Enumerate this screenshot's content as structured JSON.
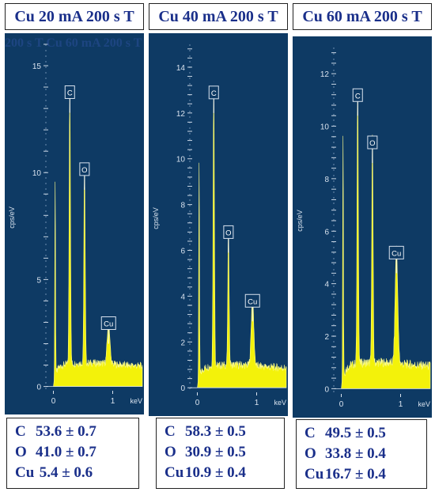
{
  "titles": [
    "Cu 20 mA 200 s T",
    "Cu 40 mA 200 s T",
    "Cu 60 mA 200 s T"
  ],
  "ghost_text": "200 s T   Cu 60 mA   200 s T",
  "compositions": [
    [
      {
        "el": "C",
        "val": "53.6 ± 0.7"
      },
      {
        "el": "O",
        "val": "41.0 ± 0.7"
      },
      {
        "el": "Cu",
        "val": " 5.4 ± 0.6"
      }
    ],
    [
      {
        "el": "C",
        "val": "58.3 ± 0.5"
      },
      {
        "el": "O",
        "val": "30.9 ± 0.5"
      },
      {
        "el": "Cu",
        "val": "10.9 ± 0.4"
      }
    ],
    [
      {
        "el": "C",
        "val": "49.5 ± 0.5"
      },
      {
        "el": "O",
        "val": "33.8 ± 0.4"
      },
      {
        "el": "Cu",
        "val": "16.7 ± 0.4"
      }
    ]
  ],
  "chart_data": [
    {
      "type": "line",
      "ylabel": "cps/eV",
      "xlabel": "keV",
      "xlim": [
        -0.1,
        1.5
      ],
      "ylim": [
        -0.2,
        16
      ],
      "yticks": [
        0,
        5,
        10,
        15
      ],
      "xticks": [
        0,
        1
      ],
      "peaks": [
        {
          "x": 0.03,
          "height": 9.3,
          "label": ""
        },
        {
          "x": 0.277,
          "height": 12.8,
          "label": "C"
        },
        {
          "x": 0.525,
          "height": 9.2,
          "label": "O"
        },
        {
          "x": 0.93,
          "height": 2.0,
          "label": "Cu"
        }
      ],
      "baseline": 1.1,
      "fill_color": "#f3f20a",
      "background": "#0e3a64"
    },
    {
      "type": "line",
      "ylabel": "cps/eV",
      "xlabel": "keV",
      "xlim": [
        -0.1,
        1.5
      ],
      "ylim": [
        -0.2,
        15
      ],
      "yticks": [
        0,
        2,
        4,
        6,
        8,
        10,
        12,
        14
      ],
      "xticks": [
        0,
        1
      ],
      "peaks": [
        {
          "x": 0.03,
          "height": 9.6,
          "label": ""
        },
        {
          "x": 0.277,
          "height": 12.0,
          "label": "C"
        },
        {
          "x": 0.525,
          "height": 5.9,
          "label": "O"
        },
        {
          "x": 0.93,
          "height": 2.9,
          "label": "Cu"
        }
      ],
      "baseline": 1.0,
      "fill_color": "#f3f20a",
      "background": "#0e3a64"
    },
    {
      "type": "line",
      "ylabel": "cps/eV",
      "xlabel": "keV",
      "xlim": [
        -0.1,
        1.5
      ],
      "ylim": [
        -0.2,
        13
      ],
      "yticks": [
        0,
        2,
        4,
        6,
        8,
        10,
        12
      ],
      "xticks": [
        0,
        1
      ],
      "peaks": [
        {
          "x": 0.03,
          "height": 9.4,
          "label": ""
        },
        {
          "x": 0.277,
          "height": 10.4,
          "label": "C"
        },
        {
          "x": 0.525,
          "height": 8.6,
          "label": "O"
        },
        {
          "x": 0.93,
          "height": 4.4,
          "label": "Cu"
        }
      ],
      "baseline": 1.0,
      "fill_color": "#f3f20a",
      "background": "#0e3a64"
    }
  ]
}
